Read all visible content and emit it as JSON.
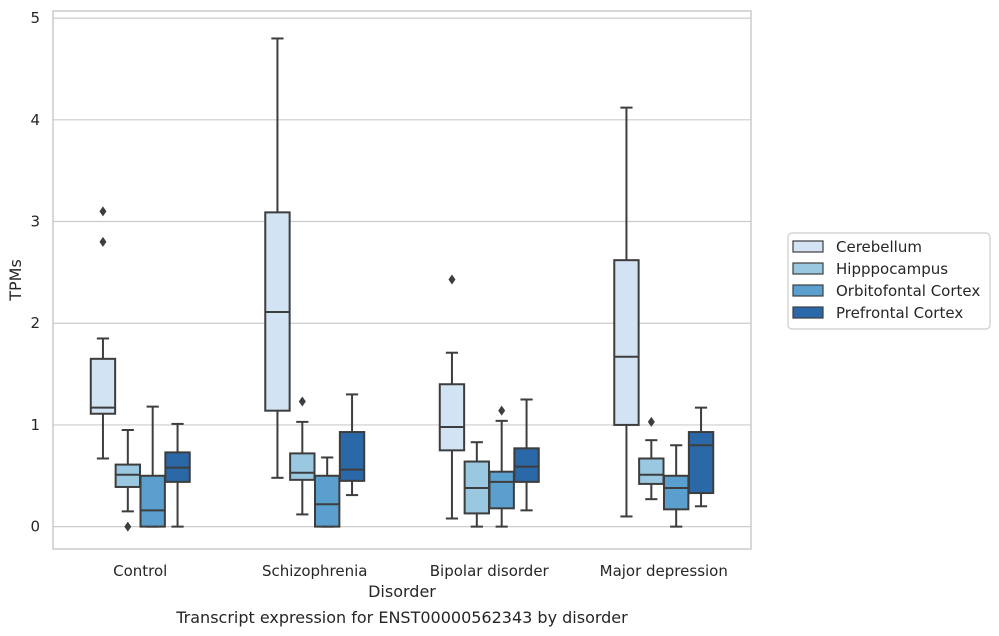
{
  "chart_data": {
    "type": "boxplot",
    "title": "Transcript expression for ENST00000562343 by disorder",
    "xlabel": "Disorder",
    "ylabel": "TPMs",
    "ylim": [
      -0.22,
      5.07
    ],
    "yticks": [
      0,
      1,
      2,
      3,
      4,
      5
    ],
    "grid": "horizontal",
    "legend_position": "right",
    "categories": [
      "Control",
      "Schizophrenia",
      "Bipolar disorder",
      "Major depression"
    ],
    "series": [
      {
        "name": "Cerebellum",
        "color": "#d2e3f3",
        "boxes": [
          {
            "whislo": 0.67,
            "q1": 1.11,
            "med": 1.17,
            "q3": 1.65,
            "whishi": 1.85,
            "fliers": [
              2.8,
              3.1
            ]
          },
          {
            "whislo": 0.48,
            "q1": 1.14,
            "med": 2.11,
            "q3": 3.09,
            "whishi": 4.8,
            "fliers": []
          },
          {
            "whislo": 0.08,
            "q1": 0.75,
            "med": 0.98,
            "q3": 1.4,
            "whishi": 1.71,
            "fliers": [
              2.43
            ]
          },
          {
            "whislo": 0.1,
            "q1": 1.0,
            "med": 1.67,
            "q3": 2.62,
            "whishi": 4.12,
            "fliers": []
          }
        ]
      },
      {
        "name": "Hipppocampus",
        "color": "#9ac8e0",
        "boxes": [
          {
            "whislo": 0.15,
            "q1": 0.39,
            "med": 0.51,
            "q3": 0.61,
            "whishi": 0.95,
            "fliers": [
              0.0
            ]
          },
          {
            "whislo": 0.12,
            "q1": 0.46,
            "med": 0.53,
            "q3": 0.72,
            "whishi": 1.03,
            "fliers": [
              1.23
            ]
          },
          {
            "whislo": 0.0,
            "q1": 0.13,
            "med": 0.38,
            "q3": 0.64,
            "whishi": 0.83,
            "fliers": []
          },
          {
            "whislo": 0.27,
            "q1": 0.42,
            "med": 0.51,
            "q3": 0.67,
            "whishi": 0.85,
            "fliers": [
              1.03
            ]
          }
        ]
      },
      {
        "name": "Orbitofontal Cortex",
        "color": "#5a9fcd",
        "boxes": [
          {
            "whislo": 0.0,
            "q1": 0.0,
            "med": 0.16,
            "q3": 0.5,
            "whishi": 1.18,
            "fliers": []
          },
          {
            "whislo": 0.0,
            "q1": 0.0,
            "med": 0.22,
            "q3": 0.5,
            "whishi": 0.68,
            "fliers": []
          },
          {
            "whislo": 0.0,
            "q1": 0.18,
            "med": 0.44,
            "q3": 0.54,
            "whishi": 1.04,
            "fliers": [
              1.14
            ]
          },
          {
            "whislo": 0.0,
            "q1": 0.17,
            "med": 0.38,
            "q3": 0.5,
            "whishi": 0.8,
            "fliers": []
          }
        ]
      },
      {
        "name": "Prefrontal Cortex",
        "color": "#2a68a8",
        "boxes": [
          {
            "whislo": 0.0,
            "q1": 0.44,
            "med": 0.58,
            "q3": 0.73,
            "whishi": 1.01,
            "fliers": []
          },
          {
            "whislo": 0.31,
            "q1": 0.45,
            "med": 0.56,
            "q3": 0.93,
            "whishi": 1.3,
            "fliers": []
          },
          {
            "whislo": 0.16,
            "q1": 0.44,
            "med": 0.59,
            "q3": 0.77,
            "whishi": 1.25,
            "fliers": []
          },
          {
            "whislo": 0.2,
            "q1": 0.33,
            "med": 0.8,
            "q3": 0.93,
            "whishi": 1.17,
            "fliers": []
          }
        ]
      }
    ]
  }
}
